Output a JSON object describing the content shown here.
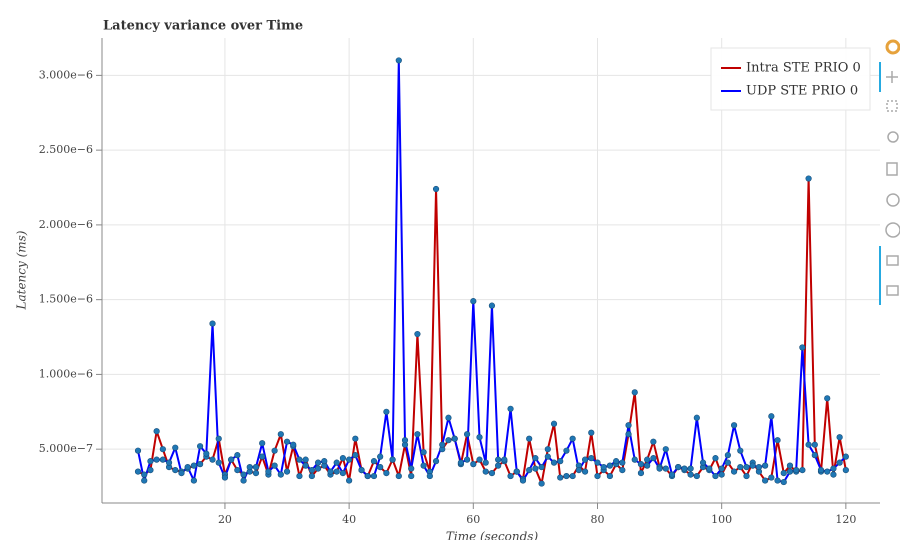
{
  "chart_data": {
    "type": "line",
    "title": "Latency variance over Time",
    "x_label": "Time (seconds)",
    "y_label": "Latency (ms)",
    "x": [
      6,
      7,
      8,
      9,
      10,
      11,
      12,
      13,
      14,
      15,
      16,
      17,
      18,
      19,
      20,
      21,
      22,
      23,
      24,
      25,
      26,
      27,
      28,
      29,
      30,
      31,
      32,
      33,
      34,
      35,
      36,
      37,
      38,
      39,
      40,
      41,
      42,
      43,
      44,
      45,
      46,
      47,
      48,
      49,
      50,
      51,
      52,
      53,
      54,
      55,
      56,
      57,
      58,
      59,
      60,
      61,
      62,
      63,
      64,
      65,
      66,
      67,
      68,
      69,
      70,
      71,
      72,
      73,
      74,
      75,
      76,
      77,
      78,
      79,
      80,
      81,
      82,
      83,
      84,
      85,
      86,
      87,
      88,
      89,
      90,
      91,
      92,
      93,
      94,
      95,
      96,
      97,
      98,
      99,
      100,
      101,
      102,
      103,
      104,
      105,
      106,
      107,
      108,
      109,
      110,
      111,
      112,
      113,
      114,
      115,
      116,
      117,
      118,
      119,
      120
    ],
    "series": [
      {
        "name": "Intra STE PRIO 0",
        "color": "#c00000",
        "values": [
          3.5e-07,
          3.3e-07,
          3.6e-07,
          6.2e-07,
          5e-07,
          3.8e-07,
          3.6e-07,
          3.5e-07,
          3.7e-07,
          3.9e-07,
          4e-07,
          4.5e-07,
          4.3e-07,
          5.7e-07,
          3.3e-07,
          4.3e-07,
          3.6e-07,
          3.3e-07,
          3.5e-07,
          3.4e-07,
          4.5e-07,
          3.3e-07,
          4.9e-07,
          6e-07,
          3.5e-07,
          5.2e-07,
          3.2e-07,
          4.3e-07,
          3.2e-07,
          3.7e-07,
          3.9e-07,
          3.3e-07,
          3.5e-07,
          4.4e-07,
          2.9e-07,
          5.7e-07,
          3.6e-07,
          3.2e-07,
          4.2e-07,
          3.8e-07,
          3.4e-07,
          4.3e-07,
          3.2e-07,
          5.3e-07,
          3.2e-07,
          1.27e-06,
          4.8e-07,
          3.5e-07,
          2.24e-06,
          5e-07,
          5.6e-07,
          5.7e-07,
          4e-07,
          6e-07,
          4e-07,
          4.3e-07,
          3.5e-07,
          3.4e-07,
          3.9e-07,
          4.2e-07,
          3.2e-07,
          3.5e-07,
          3e-07,
          5.7e-07,
          3.7e-07,
          2.7e-07,
          5e-07,
          6.7e-07,
          3.1e-07,
          3.2e-07,
          3.2e-07,
          3.9e-07,
          3.5e-07,
          6.1e-07,
          3.2e-07,
          3.6e-07,
          3.2e-07,
          4e-07,
          3.6e-07,
          6e-07,
          8.8e-07,
          3.4e-07,
          4.3e-07,
          5.5e-07,
          3.8e-07,
          3.7e-07,
          3.2e-07,
          3.8e-07,
          3.6e-07,
          3.3e-07,
          3.2e-07,
          3.8e-07,
          3.6e-07,
          4.4e-07,
          3.3e-07,
          4.1e-07,
          3.5e-07,
          3.8e-07,
          3.2e-07,
          4.1e-07,
          3.5e-07,
          2.9e-07,
          3.1e-07,
          5.6e-07,
          3.4e-07,
          3.9e-07,
          3.5e-07,
          3.6e-07,
          2.31e-06,
          5.3e-07,
          3.5e-07,
          8.4e-07,
          3.3e-07,
          5.8e-07,
          3.6e-07
        ]
      },
      {
        "name": "UDP STE PRIO 0",
        "color": "#0000ff",
        "values": [
          4.9e-07,
          2.9e-07,
          4.2e-07,
          4.3e-07,
          4.3e-07,
          4.1e-07,
          5.1e-07,
          3.4e-07,
          3.8e-07,
          2.9e-07,
          5.2e-07,
          4.7e-07,
          1.34e-06,
          4.1e-07,
          3.1e-07,
          4.3e-07,
          4.6e-07,
          2.9e-07,
          3.8e-07,
          3.8e-07,
          5.4e-07,
          3.5e-07,
          3.9e-07,
          3.3e-07,
          5.5e-07,
          5.3e-07,
          4.3e-07,
          3.9e-07,
          3.6e-07,
          4.1e-07,
          4.2e-07,
          3.5e-07,
          4.1e-07,
          3.4e-07,
          4.3e-07,
          4.6e-07,
          3.6e-07,
          3.2e-07,
          3.2e-07,
          4.5e-07,
          7.5e-07,
          4.3e-07,
          3.1e-06,
          5.6e-07,
          3.7e-07,
          6e-07,
          3.9e-07,
          3.2e-07,
          4.2e-07,
          5.3e-07,
          7.1e-07,
          5.7e-07,
          4.1e-07,
          4.3e-07,
          1.49e-06,
          5.8e-07,
          4.1e-07,
          1.46e-06,
          4.3e-07,
          4.3e-07,
          7.7e-07,
          3.5e-07,
          2.9e-07,
          3.6e-07,
          4.4e-07,
          3.8e-07,
          4.5e-07,
          4.1e-07,
          4.2e-07,
          4.9e-07,
          5.7e-07,
          3.6e-07,
          4.3e-07,
          4.4e-07,
          4.1e-07,
          3.8e-07,
          3.9e-07,
          4.2e-07,
          4.1e-07,
          6.6e-07,
          4.3e-07,
          4e-07,
          3.9e-07,
          4.4e-07,
          3.7e-07,
          5e-07,
          3.3e-07,
          3.8e-07,
          3.7e-07,
          3.7e-07,
          7.1e-07,
          4.1e-07,
          3.7e-07,
          3.2e-07,
          3.7e-07,
          4.6e-07,
          6.6e-07,
          4.9e-07,
          3.8e-07,
          3.9e-07,
          3.8e-07,
          3.9e-07,
          7.2e-07,
          2.9e-07,
          2.8e-07,
          3.5e-07,
          3.6e-07,
          1.18e-06,
          5.3e-07,
          4.6e-07,
          3.6e-07,
          3.5e-07,
          3.7e-07,
          4.1e-07,
          4.5e-07
        ]
      }
    ],
    "marker_color": "#1f77b4",
    "xlim": [
      0.2,
      125.5
    ],
    "xticks": [
      20,
      40,
      60,
      80,
      100,
      120
    ],
    "ylim": [
      1.4e-07,
      3.25e-06
    ],
    "yticks": [
      {
        "value": 5e-07,
        "label": "5.000e−7"
      },
      {
        "value": 1e-06,
        "label": "1.000e−6"
      },
      {
        "value": 1.5e-06,
        "label": "1.500e−6"
      },
      {
        "value": 2e-06,
        "label": "2.000e−6"
      },
      {
        "value": 2.5e-06,
        "label": "2.500e−6"
      },
      {
        "value": 3e-06,
        "label": "3.000e−6"
      }
    ],
    "grid": true,
    "legend_position": "top-right"
  }
}
